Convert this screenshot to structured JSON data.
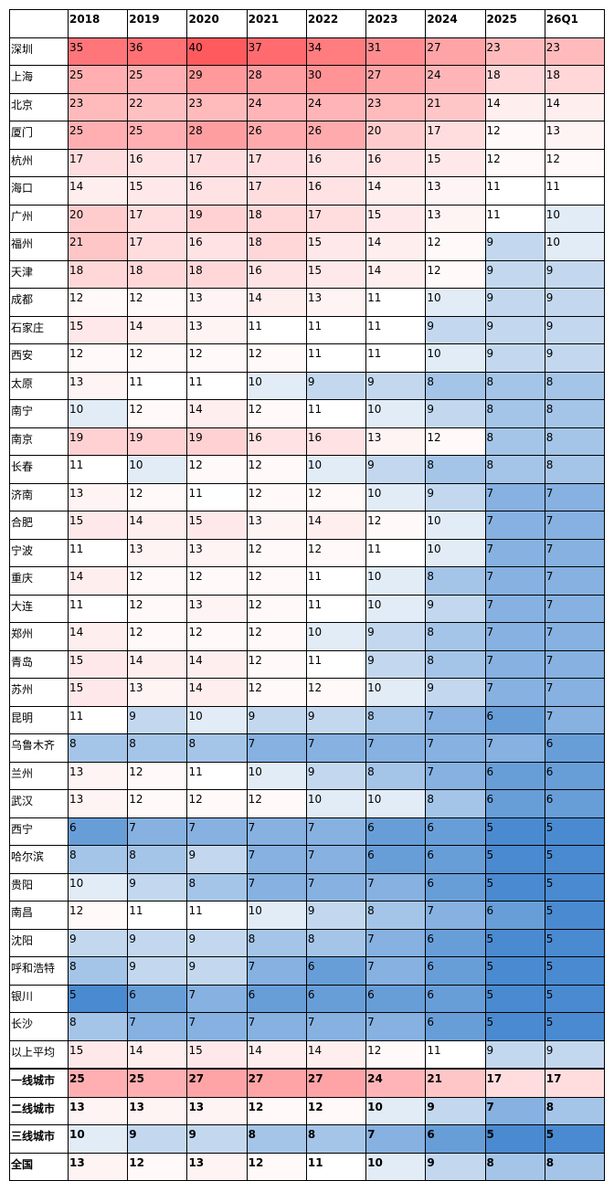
{
  "table": {
    "columns": [
      "2018",
      "2019",
      "2020",
      "2021",
      "2022",
      "2023",
      "2024",
      "2025",
      "26Q1"
    ],
    "rows": [
      {
        "label": "深圳",
        "values": [
          35,
          36,
          40,
          37,
          34,
          31,
          27,
          23,
          23
        ]
      },
      {
        "label": "上海",
        "values": [
          25,
          25,
          29,
          28,
          30,
          27,
          24,
          18,
          18
        ]
      },
      {
        "label": "北京",
        "values": [
          23,
          22,
          23,
          24,
          24,
          23,
          21,
          14,
          14
        ]
      },
      {
        "label": "厦门",
        "values": [
          25,
          25,
          28,
          26,
          26,
          20,
          17,
          12,
          13
        ]
      },
      {
        "label": "杭州",
        "values": [
          17,
          16,
          17,
          17,
          16,
          16,
          15,
          12,
          12
        ]
      },
      {
        "label": "海口",
        "values": [
          14,
          15,
          16,
          17,
          16,
          14,
          13,
          11,
          11
        ]
      },
      {
        "label": "广州",
        "values": [
          20,
          17,
          19,
          18,
          17,
          15,
          13,
          11,
          10
        ]
      },
      {
        "label": "福州",
        "values": [
          21,
          17,
          16,
          18,
          15,
          14,
          12,
          9,
          10
        ]
      },
      {
        "label": "天津",
        "values": [
          18,
          18,
          18,
          16,
          15,
          14,
          12,
          9,
          9
        ]
      },
      {
        "label": "成都",
        "values": [
          12,
          12,
          13,
          14,
          13,
          11,
          10,
          9,
          9
        ]
      },
      {
        "label": "石家庄",
        "values": [
          15,
          14,
          13,
          11,
          11,
          11,
          9,
          9,
          9
        ]
      },
      {
        "label": "西安",
        "values": [
          12,
          12,
          12,
          12,
          11,
          11,
          10,
          9,
          9
        ]
      },
      {
        "label": "太原",
        "values": [
          13,
          11,
          11,
          10,
          9,
          9,
          8,
          8,
          8
        ]
      },
      {
        "label": "南宁",
        "values": [
          10,
          12,
          14,
          12,
          11,
          10,
          9,
          8,
          8
        ]
      },
      {
        "label": "南京",
        "values": [
          19,
          19,
          19,
          16,
          16,
          13,
          12,
          8,
          8
        ]
      },
      {
        "label": "长春",
        "values": [
          11,
          10,
          12,
          12,
          10,
          9,
          8,
          8,
          8
        ]
      },
      {
        "label": "济南",
        "values": [
          13,
          12,
          11,
          12,
          12,
          10,
          9,
          7,
          7
        ]
      },
      {
        "label": "合肥",
        "values": [
          15,
          14,
          15,
          13,
          14,
          12,
          10,
          7,
          7
        ]
      },
      {
        "label": "宁波",
        "values": [
          11,
          13,
          13,
          12,
          12,
          11,
          10,
          7,
          7
        ]
      },
      {
        "label": "重庆",
        "values": [
          14,
          12,
          12,
          12,
          11,
          10,
          8,
          7,
          7
        ]
      },
      {
        "label": "大连",
        "values": [
          11,
          12,
          13,
          12,
          11,
          10,
          9,
          7,
          7
        ]
      },
      {
        "label": "郑州",
        "values": [
          14,
          12,
          12,
          12,
          10,
          9,
          8,
          7,
          7
        ]
      },
      {
        "label": "青岛",
        "values": [
          15,
          14,
          14,
          12,
          11,
          9,
          8,
          7,
          7
        ]
      },
      {
        "label": "苏州",
        "values": [
          15,
          13,
          14,
          12,
          12,
          10,
          9,
          7,
          7
        ]
      },
      {
        "label": "昆明",
        "values": [
          11,
          9,
          10,
          9,
          9,
          8,
          7,
          6,
          7
        ]
      },
      {
        "label": "乌鲁木齐",
        "values": [
          8,
          8,
          8,
          7,
          7,
          7,
          7,
          7,
          6
        ]
      },
      {
        "label": "兰州",
        "values": [
          13,
          12,
          11,
          10,
          9,
          8,
          7,
          6,
          6
        ]
      },
      {
        "label": "武汉",
        "values": [
          13,
          12,
          12,
          12,
          10,
          10,
          8,
          6,
          6
        ]
      },
      {
        "label": "西宁",
        "values": [
          6,
          7,
          7,
          7,
          7,
          6,
          6,
          5,
          5
        ]
      },
      {
        "label": "哈尔滨",
        "values": [
          8,
          8,
          9,
          7,
          7,
          6,
          6,
          5,
          5
        ]
      },
      {
        "label": "贵阳",
        "values": [
          10,
          9,
          8,
          7,
          7,
          7,
          6,
          5,
          5
        ]
      },
      {
        "label": "南昌",
        "values": [
          12,
          11,
          11,
          10,
          9,
          8,
          7,
          6,
          5
        ]
      },
      {
        "label": "沈阳",
        "values": [
          9,
          9,
          9,
          8,
          8,
          7,
          6,
          5,
          5
        ]
      },
      {
        "label": "呼和浩特",
        "values": [
          8,
          9,
          9,
          7,
          6,
          7,
          6,
          5,
          5
        ]
      },
      {
        "label": "银川",
        "values": [
          5,
          6,
          7,
          6,
          6,
          6,
          6,
          5,
          5
        ]
      },
      {
        "label": "长沙",
        "values": [
          8,
          7,
          7,
          7,
          7,
          7,
          6,
          5,
          5
        ]
      },
      {
        "label": "以上平均",
        "values": [
          15,
          14,
          15,
          14,
          14,
          12,
          11,
          9,
          9
        ]
      },
      {
        "label": "一线城市",
        "values": [
          25,
          25,
          27,
          27,
          27,
          24,
          21,
          17,
          17
        ]
      },
      {
        "label": "二线城市",
        "values": [
          13,
          13,
          13,
          12,
          12,
          10,
          9,
          7,
          8
        ]
      },
      {
        "label": "三线城市",
        "values": [
          10,
          9,
          9,
          8,
          8,
          7,
          6,
          5,
          5
        ]
      },
      {
        "label": "全国",
        "values": [
          13,
          12,
          13,
          12,
          11,
          10,
          9,
          8,
          8
        ]
      }
    ]
  }
}
